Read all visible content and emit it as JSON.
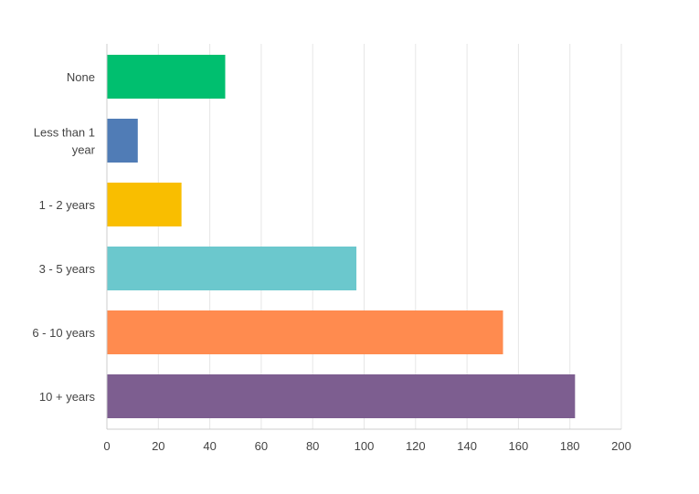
{
  "chart_data": {
    "type": "bar",
    "orientation": "horizontal",
    "title": "",
    "xlabel": "",
    "ylabel": "",
    "categories": [
      [
        "None"
      ],
      [
        "Less than 1",
        "year"
      ],
      [
        "1 - 2 years"
      ],
      [
        "3 - 5 years"
      ],
      [
        "6 - 10 years"
      ],
      [
        "10 + years"
      ]
    ],
    "values": [
      46,
      12,
      29,
      97,
      154,
      182
    ],
    "colors": [
      "#00bf6f",
      "#507cb6",
      "#f9be00",
      "#6bc8cd",
      "#ff8b4f",
      "#7d5e90"
    ],
    "xlim": [
      0,
      200
    ],
    "ticks": [
      "0",
      "20",
      "40",
      "60",
      "80",
      "100",
      "120",
      "140",
      "160",
      "180",
      "200"
    ],
    "grid": true,
    "legend": "none"
  }
}
